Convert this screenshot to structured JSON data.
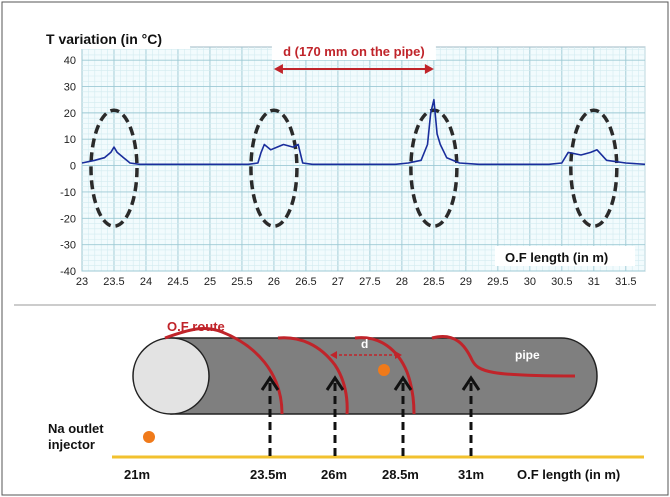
{
  "chart_data": {
    "type": "line",
    "ylabel": "T variation (in °C)",
    "xlabel": "O.F length (in m)",
    "xlim": [
      23,
      31.8
    ],
    "ylim": [
      -40,
      45
    ],
    "xticks": [
      23,
      23.5,
      24,
      24.5,
      25,
      25.5,
      26,
      26.5,
      27,
      27.5,
      28,
      28.5,
      29,
      29.5,
      30,
      30.5,
      31,
      31.5
    ],
    "xtick_labels": [
      "23",
      "23.5",
      "24",
      "24.5",
      "25",
      "25.5",
      "26",
      "26.5",
      "27",
      "27.5",
      "28",
      "28.5",
      "29",
      "29.5",
      "30",
      "30.5",
      "31",
      "31.5"
    ],
    "yticks": [
      -40,
      -30,
      -20,
      -10,
      0,
      10,
      20,
      30,
      40
    ],
    "ytick_labels": [
      "-40",
      "-30",
      "-20",
      "-10",
      "0",
      "10",
      "20",
      "30",
      "40"
    ],
    "grid": true,
    "line_color": "#1a2e9c",
    "series": [
      {
        "x": [
          23.0,
          23.2,
          23.35,
          23.45,
          23.5,
          23.55,
          23.65,
          23.75,
          23.9,
          24.2,
          24.6,
          25.0,
          25.3,
          25.6,
          25.75,
          25.8,
          25.85,
          25.95,
          26.05,
          26.15,
          26.3,
          26.38,
          26.45,
          26.6,
          27.0,
          27.5,
          27.9,
          28.1,
          28.3,
          28.4,
          28.45,
          28.5,
          28.55,
          28.6,
          28.7,
          28.9,
          29.2,
          29.6,
          30.0,
          30.3,
          30.5,
          30.6,
          30.8,
          30.95,
          31.05,
          31.2,
          31.5,
          31.8
        ],
        "y": [
          1,
          2,
          3,
          5,
          7,
          5,
          3,
          1,
          0.5,
          0.5,
          0.5,
          0.5,
          0.5,
          0.5,
          1,
          5,
          8,
          6,
          7,
          8,
          7,
          8,
          1,
          0.5,
          0.5,
          0.5,
          0.5,
          1,
          2,
          8,
          20,
          25,
          12,
          8,
          3,
          1,
          0.5,
          0.5,
          0.5,
          0.5,
          1,
          5,
          4,
          5,
          6,
          2,
          1,
          0.5
        ]
      }
    ],
    "annotation_span": {
      "label": "d (170 mm on the pipe)",
      "from": 26,
      "to": 28.5,
      "color": "#c0242a"
    },
    "highlight_ellipses": [
      {
        "center": 23.5
      },
      {
        "center": 26
      },
      {
        "center": 28.5
      },
      {
        "center": 31
      }
    ]
  },
  "diagram": {
    "route_label": "O.F route",
    "pipe_label": "pipe",
    "d_label": "d",
    "injector_label_line1": "Na outlet",
    "injector_label_line2": "injector",
    "base_axis_label": "O.F length (in m)",
    "positions": [
      "21m",
      "23.5m",
      "26m",
      "28.5m",
      "31m"
    ],
    "route_color": "#c0242a",
    "pipe_color": "#7f7f7f",
    "marker_color": "#f07a1a",
    "base_line_color": "#f2c12e"
  }
}
